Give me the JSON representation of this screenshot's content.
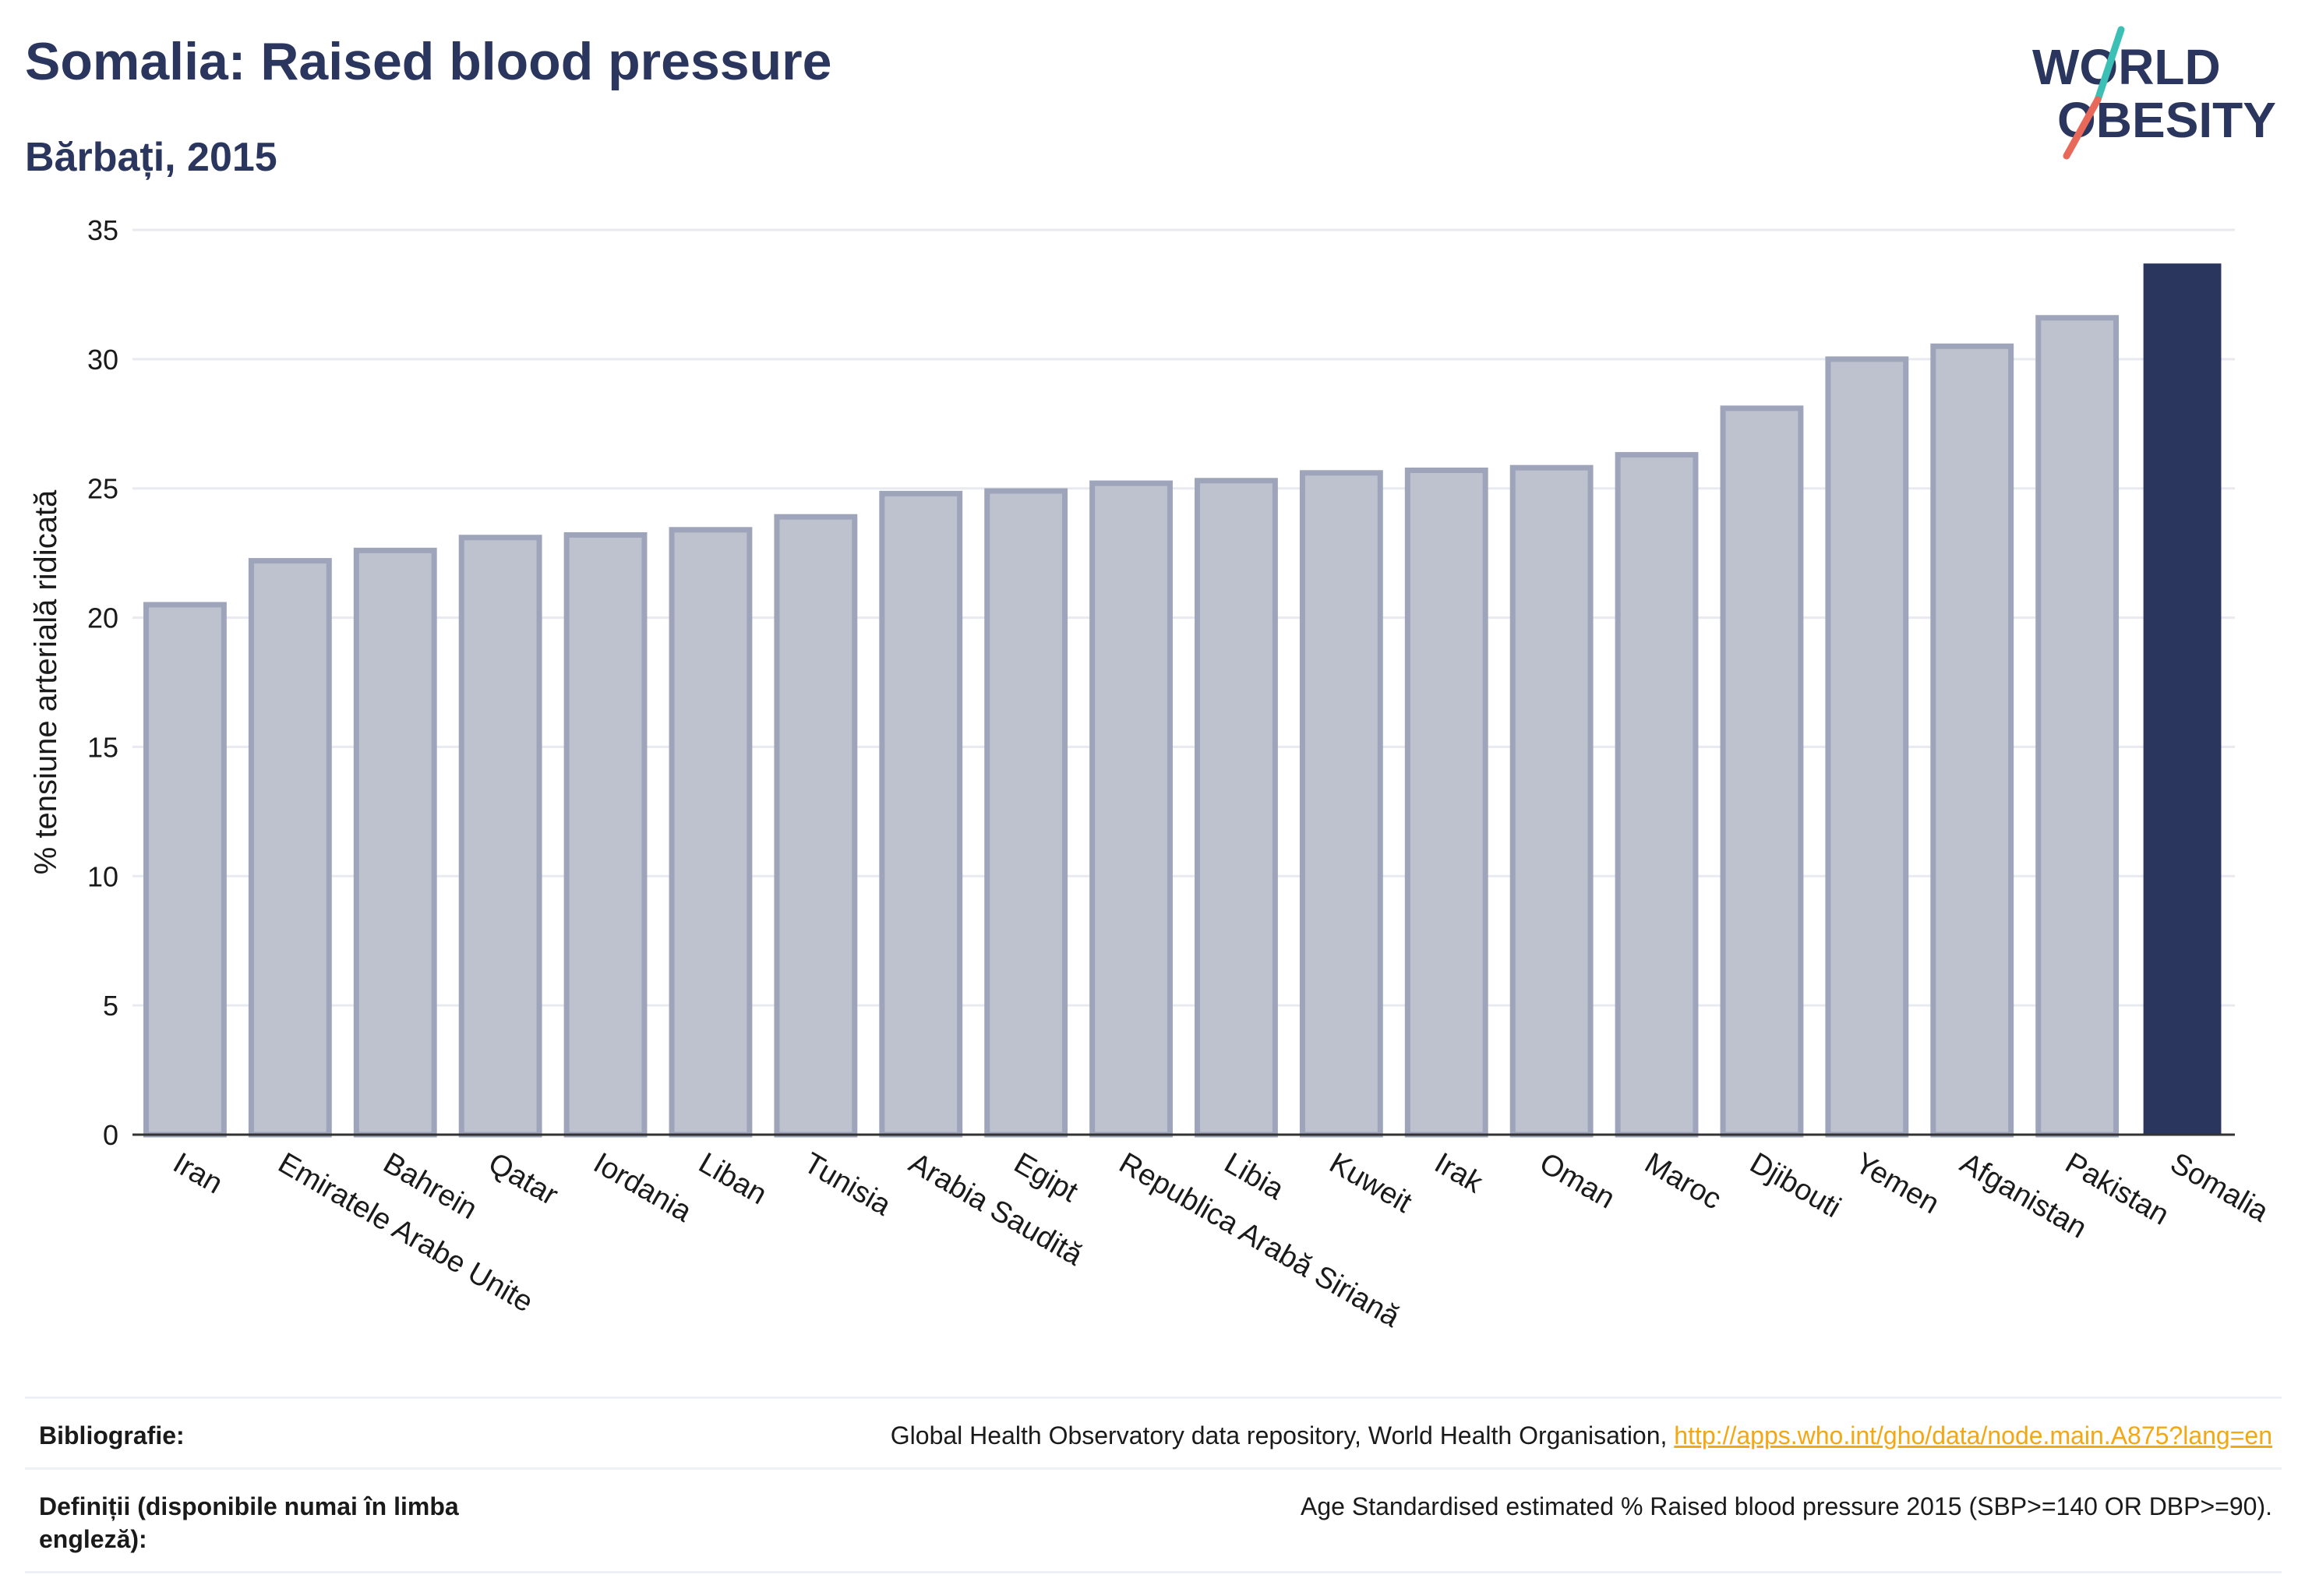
{
  "header": {
    "title": "Somalia: Raised blood pressure",
    "subtitle": "Bărbați, 2015"
  },
  "logo": {
    "line1": "WORLD",
    "line2": "OBESITY"
  },
  "colors": {
    "highlight": "#2b365f",
    "bar_fill": "#bec2cf",
    "bar_stroke": "#9ea4b9",
    "grid": "#e8eaef",
    "logo_text": "#2b365f",
    "logo_slash_teal": "#3cc0b5",
    "logo_slash_red": "#e8685a"
  },
  "chart_data": {
    "type": "bar",
    "title": "Somalia: Raised blood pressure",
    "subtitle": "Bărbați, 2015",
    "ylabel": "% tensiune arterială ridicată",
    "xlabel": "",
    "ylim": [
      0,
      35
    ],
    "yticks": [
      0,
      5,
      10,
      15,
      20,
      25,
      30,
      35
    ],
    "grid": true,
    "categories": [
      "Iran",
      "Emiratele Arabe Unite",
      "Bahrein",
      "Qatar",
      "Iordania",
      "Liban",
      "Tunisia",
      "Arabia Saudită",
      "Egipt",
      "Republica Arabă Siriană",
      "Libia",
      "Kuweit",
      "Irak",
      "Oman",
      "Maroc",
      "Djibouti",
      "Yemen",
      "Afganistan",
      "Pakistan",
      "Somalia"
    ],
    "values": [
      20.5,
      22.2,
      22.6,
      23.1,
      23.2,
      23.4,
      23.9,
      24.8,
      24.9,
      25.2,
      25.3,
      25.6,
      25.7,
      25.8,
      26.3,
      28.1,
      30.0,
      30.5,
      31.6,
      33.7
    ],
    "highlight": "Somalia"
  },
  "references": {
    "bibliography_label": "Bibliografie:",
    "bibliography_text": "Global Health Observatory data repository, World Health Organisation, ",
    "bibliography_link": "http://apps.who.int/gho/data/node.main.A875?lang=en",
    "definitions_label": "Definiții (disponibile numai în limba engleză):",
    "definitions_text": "Age Standardised estimated % Raised blood pressure 2015 (SBP>=140 OR DBP>=90)."
  }
}
